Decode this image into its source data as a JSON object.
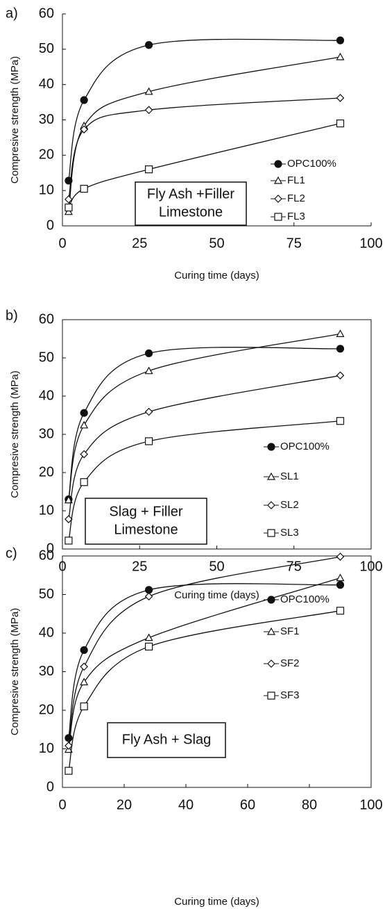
{
  "chart_data": [
    {
      "type": "line",
      "panel_label": "a)",
      "xlabel": "Curing time (days)",
      "ylabel": "Compresive strength (MPa)",
      "x": [
        2,
        7,
        28,
        90
      ],
      "xlim": [
        0,
        100
      ],
      "xticks": [
        0,
        25,
        50,
        75,
        100
      ],
      "ylim": [
        0,
        60
      ],
      "yticks": [
        0,
        10,
        20,
        30,
        40,
        50,
        60
      ],
      "frame": false,
      "annotation": [
        "Fly Ash +Filler",
        "Limestone"
      ],
      "series": [
        {
          "name": "OPC100%",
          "color": "#111111",
          "marker": "circle",
          "values": [
            12.8,
            35.6,
            51.2,
            52.5
          ]
        },
        {
          "name": "FL1",
          "color": "#111111",
          "marker": "triangle",
          "values": [
            4,
            28.3,
            38,
            47.8
          ]
        },
        {
          "name": "FL2",
          "color": "#111111",
          "marker": "diamond",
          "values": [
            7.5,
            27.3,
            32.8,
            36.2
          ]
        },
        {
          "name": "FL3",
          "color": "#111111",
          "marker": "square",
          "values": [
            5.2,
            10.5,
            16,
            29
          ]
        }
      ]
    },
    {
      "type": "line",
      "panel_label": "b)",
      "xlabel": "Curing time (days)",
      "ylabel": "Compresive strength (MPa)",
      "x": [
        2,
        7,
        28,
        90
      ],
      "xlim": [
        0,
        100
      ],
      "xticks": [
        0,
        25,
        50,
        75,
        100
      ],
      "ylim": [
        0,
        60
      ],
      "yticks": [
        0,
        10,
        20,
        30,
        40,
        50,
        60
      ],
      "frame": true,
      "annotation": [
        "Slag + Filler",
        "Limestone"
      ],
      "series": [
        {
          "name": "OPC100%",
          "color": "#111111",
          "marker": "circle",
          "values": [
            13,
            35.6,
            51.2,
            52.4
          ]
        },
        {
          "name": "SL1",
          "color": "#111111",
          "marker": "triangle",
          "values": [
            12.8,
            32.4,
            46.6,
            56.3
          ]
        },
        {
          "name": "SL2",
          "color": "#111111",
          "marker": "diamond",
          "values": [
            7.8,
            24.8,
            35.9,
            45.4
          ]
        },
        {
          "name": "SL3",
          "color": "#111111",
          "marker": "square",
          "values": [
            2.2,
            17.5,
            28.2,
            33.5
          ]
        }
      ]
    },
    {
      "type": "line",
      "panel_label": "c)",
      "xlabel": "Curing time (days)",
      "ylabel": "Compresive strength (MPa)",
      "x": [
        2,
        7,
        28,
        90
      ],
      "xlim": [
        0,
        100
      ],
      "xticks": [
        0,
        20,
        40,
        60,
        80,
        100
      ],
      "ylim": [
        0,
        60
      ],
      "yticks": [
        0,
        10,
        20,
        30,
        40,
        50,
        60
      ],
      "frame": true,
      "annotation": [
        "Fly Ash + Slag"
      ],
      "series": [
        {
          "name": "OPC100%",
          "color": "#111111",
          "marker": "circle",
          "values": [
            12.8,
            35.6,
            51.2,
            52.5
          ]
        },
        {
          "name": "SF1",
          "color": "#111111",
          "marker": "triangle",
          "values": [
            9.8,
            27.3,
            38.8,
            54.3
          ]
        },
        {
          "name": "SF2",
          "color": "#111111",
          "marker": "diamond",
          "values": [
            10.8,
            31.3,
            49.5,
            59.8
          ]
        },
        {
          "name": "SF3",
          "color": "#111111",
          "marker": "square",
          "values": [
            4.3,
            21,
            36.5,
            45.8
          ]
        }
      ]
    }
  ]
}
